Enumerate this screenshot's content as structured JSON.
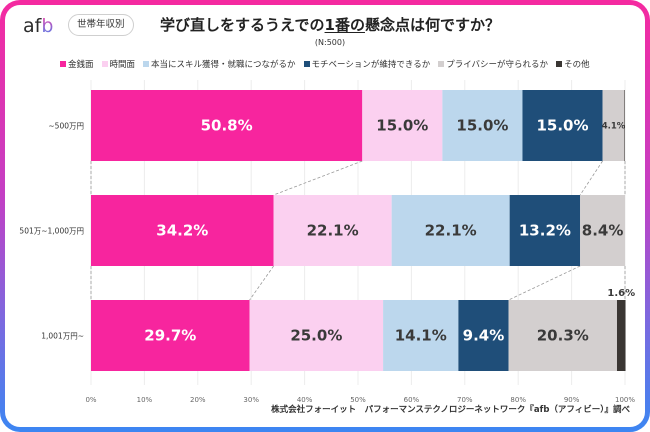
{
  "header": {
    "logo_prefix": "af",
    "logo_suffix": "b",
    "badge": "世帯年収別",
    "title_pre": "学び直しをするうえでの",
    "title_emph": "1番の",
    "title_post": "懸念点は何ですか？",
    "subtitle": "(N:500)"
  },
  "footer": "株式会社フォーイット　パフォーマンステクノロジーネットワーク『afb（アフィビー）』調べ",
  "colors": {
    "money": "#f7259e",
    "time": "#fbd0f0",
    "skill": "#bcd7ed",
    "motivation": "#1f4e79",
    "privacy": "#d3cfcf",
    "other": "#3a3633",
    "frame_top": "#f52aa0",
    "frame_bottom": "#3c86f2"
  },
  "chart_data": {
    "type": "bar",
    "orientation": "horizontal",
    "stacked": true,
    "percent": true,
    "title": "学び直しをするうえでの1番の懸念点は何ですか？",
    "subtitle": "(N:500)",
    "categories": [
      "~500万円",
      "501万~1,000万円",
      "1,001万円~"
    ],
    "series": [
      {
        "name": "金銭面",
        "color_key": "money",
        "values": [
          50.8,
          34.2,
          29.7
        ],
        "labels": [
          "50.8%",
          "34.2%",
          "29.7%"
        ]
      },
      {
        "name": "時間面",
        "color_key": "time",
        "values": [
          15.0,
          22.1,
          25.0
        ],
        "labels": [
          "15.0%",
          "22.1%",
          "25.0%"
        ]
      },
      {
        "name": "本当にスキル獲得・就職につながるか",
        "color_key": "skill",
        "values": [
          15.0,
          22.1,
          14.1
        ],
        "labels": [
          "15.0%",
          "22.1%",
          "14.1%"
        ]
      },
      {
        "name": "モチベーションが維持できるか",
        "color_key": "motivation",
        "values": [
          15.0,
          13.2,
          9.4
        ],
        "labels": [
          "15.0%",
          "13.2%",
          "9.4%"
        ]
      },
      {
        "name": "プライバシーが守られるか",
        "color_key": "privacy",
        "values": [
          4.1,
          8.4,
          20.3
        ],
        "labels": [
          "4.1%",
          "8.4%",
          "20.3%"
        ]
      },
      {
        "name": "その他",
        "color_key": "other",
        "values": [
          0.1,
          0.0,
          1.6
        ],
        "labels": [
          "",
          "",
          "1.6%"
        ]
      }
    ],
    "xlim": [
      0,
      100
    ],
    "xticks": [
      "0%",
      "10%",
      "20%",
      "30%",
      "40%",
      "50%",
      "60%",
      "70%",
      "80%",
      "90%",
      "100%"
    ],
    "legend_position": "top",
    "grid": true,
    "connector_lines": "dashed lines linking cumulative boundaries of 金銭面 and モチベーション between rows"
  }
}
